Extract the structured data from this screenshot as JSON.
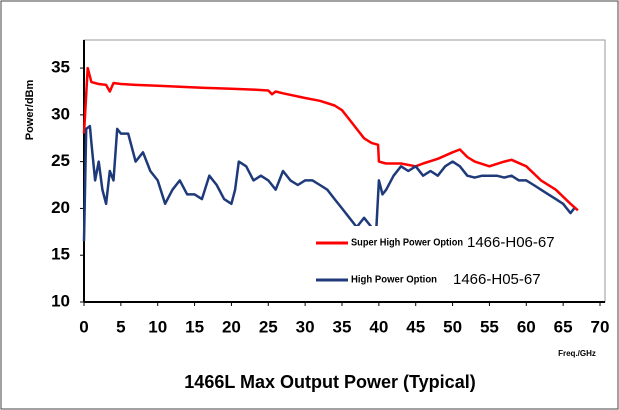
{
  "chart_data": {
    "type": "line",
    "title": "1466L Max Output Power (Typical)",
    "y_label": "Power/dBm",
    "x_label": "Freq./GHz",
    "xlim": [
      0,
      70
    ],
    "ylim": [
      10,
      38
    ],
    "xticks": [
      0,
      5,
      10,
      15,
      20,
      25,
      30,
      35,
      40,
      45,
      50,
      55,
      60,
      65,
      70
    ],
    "yticks": [
      10,
      15,
      20,
      25,
      30,
      35
    ],
    "grid": false,
    "legend": "lower right",
    "series": [
      {
        "name": "Super High Power Option",
        "note": "1466-H06-67",
        "color": "#ff0000",
        "x": [
          0,
          0.5,
          1,
          2,
          3,
          3.5,
          4,
          5,
          7,
          10,
          13,
          16,
          20,
          23,
          25,
          25.5,
          26,
          27,
          30,
          32,
          34,
          35,
          36,
          37,
          38,
          39,
          39.9,
          40,
          41,
          43,
          45,
          46,
          48,
          50,
          51,
          52,
          53,
          55,
          57,
          58,
          60,
          62,
          64,
          66,
          67
        ],
        "values": [
          28,
          35,
          33.5,
          33.3,
          33.2,
          32.5,
          33.4,
          33.3,
          33.2,
          33.1,
          33,
          32.9,
          32.8,
          32.7,
          32.6,
          32.2,
          32.5,
          32.3,
          31.8,
          31.5,
          31,
          30.5,
          29.5,
          28.5,
          27.5,
          27,
          26.8,
          25,
          24.8,
          24.8,
          24.5,
          24.8,
          25.3,
          26,
          26.3,
          25.5,
          25,
          24.5,
          25,
          25.2,
          24.5,
          23,
          22,
          20.5,
          19.8
        ]
      },
      {
        "name": "High Power Option",
        "note": "1466-H05-67",
        "color": "#1f3a7a",
        "x": [
          0,
          0.3,
          0.8,
          1,
          1.5,
          2,
          2.5,
          3,
          3.5,
          4,
          4.5,
          5,
          6,
          7,
          8,
          9,
          10,
          11,
          12,
          13,
          14,
          15,
          16,
          17,
          18,
          19,
          20,
          20.5,
          21,
          22,
          23,
          24,
          25,
          26,
          27,
          28,
          29,
          30,
          31,
          32,
          33,
          34,
          35,
          36,
          37,
          38,
          39,
          39.6,
          40,
          40.5,
          41,
          42,
          43,
          44,
          45,
          46,
          47,
          48,
          49,
          50,
          51,
          52,
          53,
          54,
          55,
          56,
          57,
          58,
          59,
          60,
          61,
          62,
          63,
          64,
          65,
          66,
          66.5
        ],
        "values": [
          16.5,
          28.5,
          28.8,
          27,
          23,
          25,
          22,
          20.5,
          24,
          23,
          28.5,
          28,
          28,
          25,
          26,
          24,
          23,
          20.5,
          22,
          23,
          21.5,
          21.5,
          21,
          23.5,
          22.5,
          21,
          20.5,
          22,
          25,
          24.5,
          23,
          23.5,
          23,
          22,
          24,
          23,
          22.5,
          23,
          23,
          22.5,
          22,
          21,
          20,
          19,
          18,
          19,
          18,
          17,
          23,
          21.5,
          22,
          23.5,
          24.5,
          24,
          24.5,
          23.5,
          24,
          23.5,
          24.5,
          25,
          24.5,
          23.5,
          23.3,
          23.5,
          23.5,
          23.5,
          23.3,
          23.5,
          23,
          23,
          22.5,
          22,
          21.5,
          21,
          20.5,
          19.5,
          20
        ]
      }
    ]
  }
}
